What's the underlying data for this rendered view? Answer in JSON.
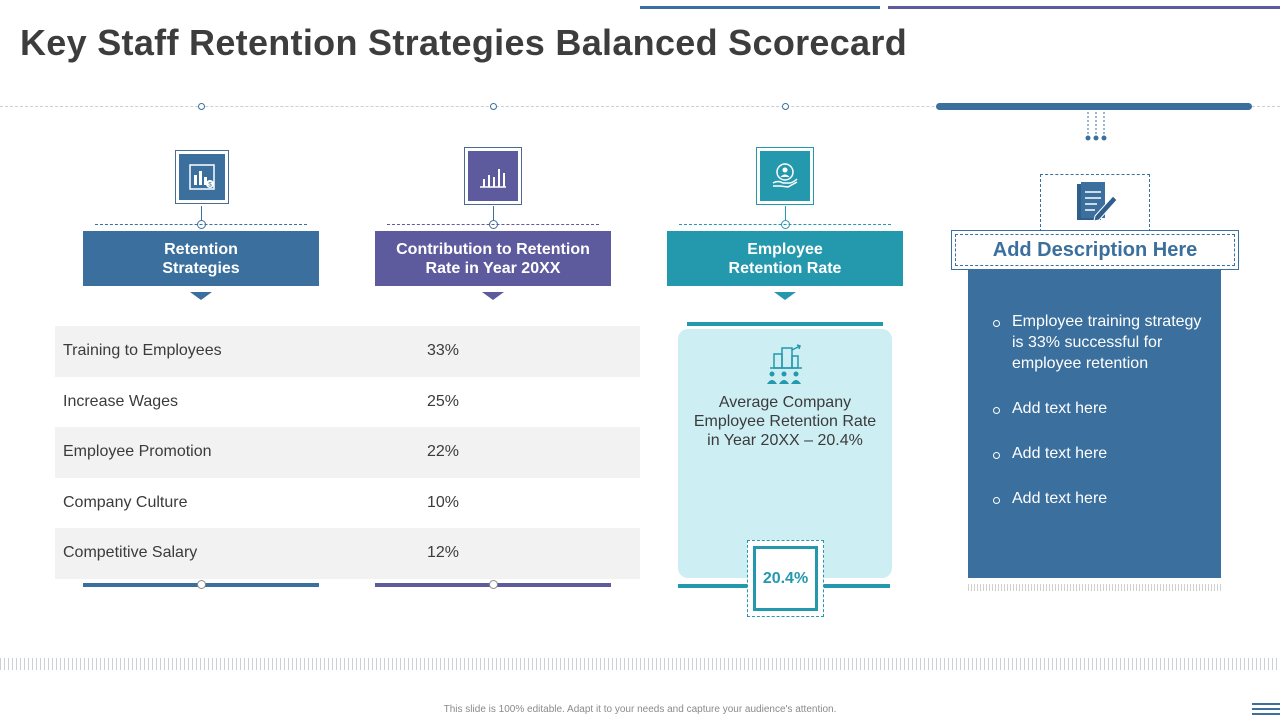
{
  "title": "Key Staff Retention Strategies Balanced Scorecard",
  "columns": [
    {
      "header": "Retention Strategies",
      "color": "#3a6f9e",
      "icon": "strategy-chart-icon"
    },
    {
      "header": "Contribution to Retention Rate in Year 20XX",
      "color": "#5e5a9e",
      "icon": "bar-chart-icon"
    },
    {
      "header": "Employee Retention Rate",
      "color": "#2498ad",
      "icon": "employee-hand-icon"
    }
  ],
  "table": {
    "rows": [
      {
        "strategy": "Training to Employees",
        "value": "33%"
      },
      {
        "strategy": "Increase Wages",
        "value": "25%"
      },
      {
        "strategy": "Employee Promotion",
        "value": "22%"
      },
      {
        "strategy": "Company Culture",
        "value": "10%"
      },
      {
        "strategy": "Competitive Salary",
        "value": "12%"
      }
    ]
  },
  "retention_card": {
    "icon": "company-people-icon",
    "text": "Average Company Employee Retention Rate in Year 20XX – 20.4%",
    "badge": "20.4%"
  },
  "description": {
    "icon": "document-pen-icon",
    "title": "Add Description Here",
    "items": [
      "Employee training strategy is 33% successful for employee retention",
      "Add text here",
      "Add text here",
      "Add text here"
    ]
  },
  "footer": "This slide is 100% editable. Adapt it to your needs and capture your audience's attention."
}
